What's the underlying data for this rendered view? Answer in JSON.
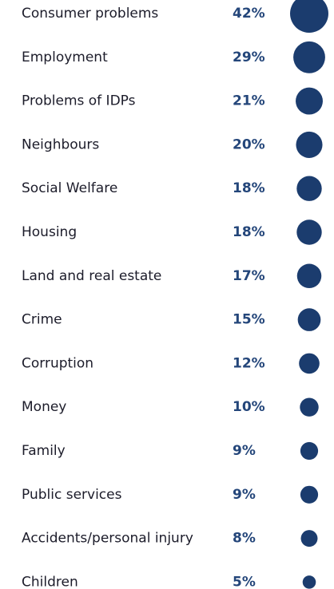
{
  "chart_data": {
    "type": "bubble",
    "categories": [
      "Consumer problems",
      "Employment",
      "Problems of IDPs",
      "Neighbours",
      "Social Welfare",
      "Housing",
      "Land and real estate",
      "Crime",
      "Corruption",
      "Money",
      "Family",
      "Public services",
      "Accidents/personal injury",
      "Children"
    ],
    "values": [
      42,
      29,
      21,
      20,
      18,
      18,
      17,
      15,
      12,
      10,
      9,
      9,
      8,
      5
    ],
    "value_labels": [
      "42%",
      "29%",
      "21%",
      "20%",
      "18%",
      "18%",
      "17%",
      "15%",
      "12%",
      "10%",
      "9%",
      "9%",
      "8%",
      "5%"
    ],
    "color": "#1b3c6e"
  }
}
